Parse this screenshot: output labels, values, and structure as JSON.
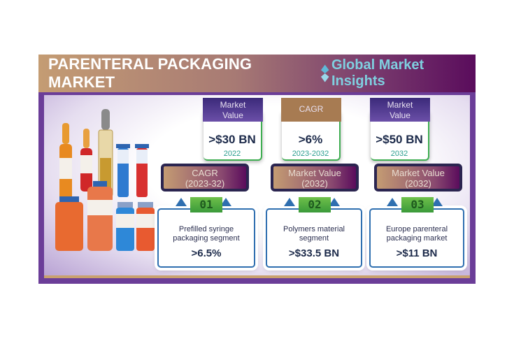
{
  "header": {
    "title": "PARENTERAL PACKAGING MARKET",
    "logo_text": "Global Market Insights"
  },
  "top_stats": [
    {
      "label_line1": "Market",
      "label_line2": "Value",
      "value": ">$30 BN",
      "period": "2022"
    },
    {
      "label_line1": "CAGR",
      "label_line2": "",
      "value": ">6%",
      "period": "2023-2032"
    },
    {
      "label_line1": "Market",
      "label_line2": "Value",
      "value": ">$50 BN",
      "period": "2032"
    }
  ],
  "segments": [
    {
      "label_line1": "CAGR",
      "label_line2": "(2023-32)",
      "number": "01",
      "desc_line1": "Prefilled syringe",
      "desc_line2": "packaging segment",
      "value": ">6.5%"
    },
    {
      "label_line1": "Market Value",
      "label_line2": "(2032)",
      "number": "02",
      "desc_line1": "Polymers material",
      "desc_line2": "segment",
      "value": ">$33.5 BN"
    },
    {
      "label_line1": "Market Value",
      "label_line2": "(2032)",
      "number": "03",
      "desc_line1": "Europe parenteral",
      "desc_line2": "packaging market",
      "value": ">$11 BN"
    }
  ],
  "colors": {
    "header_start": "#c49c73",
    "header_end": "#5a0c5c",
    "frame": "#6b3d98",
    "accent_green": "#3fae52",
    "accent_blue": "#2f6fb0"
  }
}
